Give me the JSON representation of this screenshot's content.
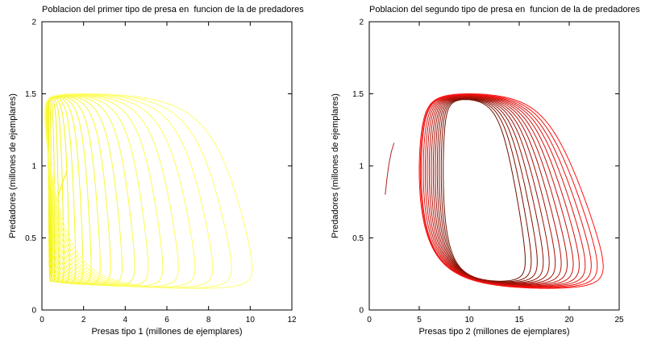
{
  "figure": {
    "background": "#ffffff",
    "axis_color": "#000000"
  },
  "chart_data": [
    {
      "type": "line",
      "subtype": "phase-portrait",
      "title": "Poblacion del primer tipo de presa en  funcion de la de predadores",
      "xlabel": "Presas tipo 1 (millones de ejemplares)",
      "ylabel": "Predadores (millones de ejemplares)",
      "xlim": [
        0,
        12
      ],
      "ylim": [
        0,
        2
      ],
      "xticks": [
        0,
        2,
        4,
        6,
        8,
        10,
        12
      ],
      "yticks": [
        0,
        0.5,
        1,
        1.5,
        2
      ],
      "grid": false,
      "legend": "none",
      "line_color_inner": "#f2f200",
      "line_color_outer": "#ffff70",
      "shape": {
        "style": "balloon",
        "flatten": 1.9,
        "x_phase": 0.55,
        "x_power": 1.15
      },
      "loops": {
        "x_min": [
          0.32,
          0.31,
          0.3,
          0.29,
          0.28,
          0.27,
          0.26,
          0.25,
          0.24,
          0.23,
          0.22,
          0.21,
          0.2,
          0.19,
          0.18,
          0.17,
          0.16,
          0.15,
          0.14
        ],
        "x_max": [
          0.45,
          0.62,
          0.82,
          1.05,
          1.32,
          1.62,
          1.97,
          2.36,
          2.8,
          3.3,
          3.85,
          4.45,
          5.1,
          5.8,
          6.55,
          7.35,
          8.2,
          9.1,
          10.1
        ],
        "y_min": [
          0.2,
          0.197,
          0.194,
          0.192,
          0.189,
          0.186,
          0.183,
          0.18,
          0.178,
          0.175,
          0.172,
          0.169,
          0.166,
          0.164,
          0.161,
          0.158,
          0.155,
          0.152,
          0.15
        ],
        "y_max": [
          1.47,
          1.472,
          1.473,
          1.475,
          1.477,
          1.479,
          1.48,
          1.482,
          1.484,
          1.486,
          1.487,
          1.489,
          1.491,
          1.493,
          1.494,
          1.496,
          1.498,
          1.5,
          1.5
        ]
      },
      "transient": {
        "color": "#f0f000",
        "points": [
          [
            1.22,
            0.97
          ],
          [
            1.03,
            0.9
          ],
          [
            0.88,
            0.84
          ],
          [
            0.78,
            0.79
          ]
        ]
      }
    },
    {
      "type": "line",
      "subtype": "phase-portrait",
      "title": "Poblacion del segundo tipo de presa en  funcion de la de predadores",
      "xlabel": "Presas tipo 2 (millones de ejemplares)",
      "ylabel": "Predadores (millones de ejemplares)",
      "xlim": [
        0,
        25
      ],
      "ylim": [
        0,
        2
      ],
      "xticks": [
        0,
        5,
        10,
        15,
        20,
        25
      ],
      "yticks": [
        0,
        0.5,
        1,
        1.5,
        2
      ],
      "grid": false,
      "legend": "none",
      "line_color_inner": "#701000",
      "line_color_outer": "#ff1212",
      "shape": {
        "style": "egg",
        "flatten": 1.7,
        "x_phase": 0.45,
        "top_narrow": 0.32
      },
      "loops": {
        "x_min": [
          7.4,
          7.2,
          7.0,
          6.8,
          6.6,
          6.4,
          6.2,
          6.0,
          5.8,
          5.6,
          5.4,
          5.2,
          5.1,
          5.0
        ],
        "x_max": [
          15.6,
          16.2,
          16.8,
          17.4,
          18.0,
          18.6,
          19.2,
          19.8,
          20.4,
          21.0,
          21.6,
          22.2,
          22.8,
          23.4
        ],
        "y_min": [
          0.2,
          0.196,
          0.192,
          0.188,
          0.185,
          0.181,
          0.177,
          0.173,
          0.169,
          0.165,
          0.162,
          0.158,
          0.154,
          0.15
        ],
        "y_max": [
          1.46,
          1.463,
          1.466,
          1.469,
          1.472,
          1.475,
          1.478,
          1.481,
          1.484,
          1.487,
          1.49,
          1.493,
          1.496,
          1.5
        ]
      },
      "transient": {
        "color": "#b22222",
        "points": [
          [
            1.6,
            0.8
          ],
          [
            1.78,
            0.92
          ],
          [
            1.98,
            1.02
          ],
          [
            2.22,
            1.1
          ],
          [
            2.48,
            1.16
          ]
        ]
      }
    }
  ]
}
